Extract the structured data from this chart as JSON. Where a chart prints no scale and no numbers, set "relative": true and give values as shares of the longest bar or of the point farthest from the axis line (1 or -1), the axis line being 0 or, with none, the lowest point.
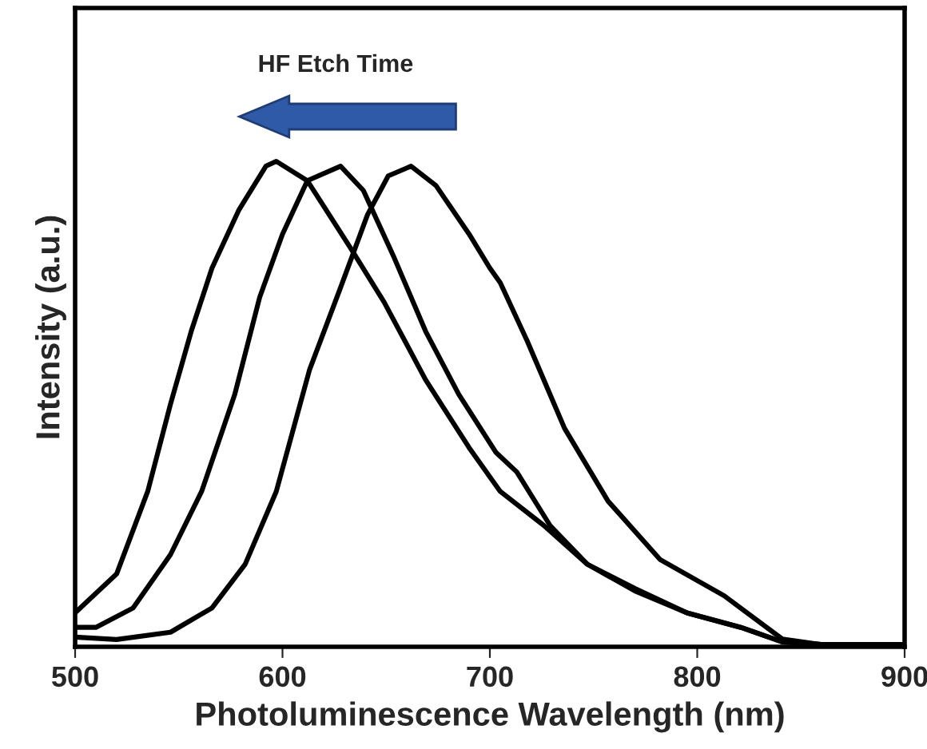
{
  "chart_data": {
    "type": "line",
    "xlabel": "Photoluminescence Wavelength (nm)",
    "ylabel": "Intensity (a.u.)",
    "relative": true,
    "xlim": [
      500,
      900
    ],
    "xticks": [
      500,
      600,
      700,
      800,
      900
    ],
    "tick_labels": "x",
    "grid": false,
    "legend": false,
    "marker": "none",
    "line_style": "solid",
    "annotations": [
      "HF Etch Time"
    ],
    "series": [
      {
        "color": "#000000",
        "x": [
          500,
          520,
          535,
          546,
          556,
          566,
          579,
          592,
          597,
          612,
          633,
          649,
          669,
          690,
          705,
          726,
          747,
          770,
          795,
          821,
          841,
          860,
          900
        ],
        "values": [
          0.07,
          0.15,
          0.32,
          0.5,
          0.65,
          0.78,
          0.9,
          0.99,
          1.0,
          0.96,
          0.82,
          0.71,
          0.55,
          0.41,
          0.32,
          0.25,
          0.17,
          0.115,
          0.07,
          0.04,
          0.01,
          0.005,
          0.005
        ]
      },
      {
        "color": "#000000",
        "x": [
          500,
          510,
          528,
          546,
          561,
          577,
          589,
          600,
          612,
          628,
          639,
          654,
          669,
          685,
          703,
          713,
          729,
          747,
          770,
          795,
          821,
          841,
          860,
          900
        ],
        "values": [
          0.04,
          0.04,
          0.08,
          0.19,
          0.32,
          0.52,
          0.72,
          0.85,
          0.96,
          0.99,
          0.94,
          0.8,
          0.65,
          0.52,
          0.4,
          0.36,
          0.25,
          0.17,
          0.12,
          0.07,
          0.04,
          0.01,
          0.005,
          0.005
        ]
      },
      {
        "color": "#000000",
        "x": [
          500,
          520,
          546,
          566,
          582,
          597,
          613,
          628,
          641,
          651,
          662,
          674,
          690,
          700,
          705,
          718,
          736,
          757,
          782,
          813,
          841,
          859,
          900
        ],
        "values": [
          0.02,
          0.015,
          0.03,
          0.08,
          0.17,
          0.32,
          0.57,
          0.74,
          0.89,
          0.97,
          0.99,
          0.95,
          0.85,
          0.78,
          0.75,
          0.63,
          0.45,
          0.3,
          0.18,
          0.105,
          0.016,
          0.005,
          0.005
        ]
      }
    ]
  }
}
